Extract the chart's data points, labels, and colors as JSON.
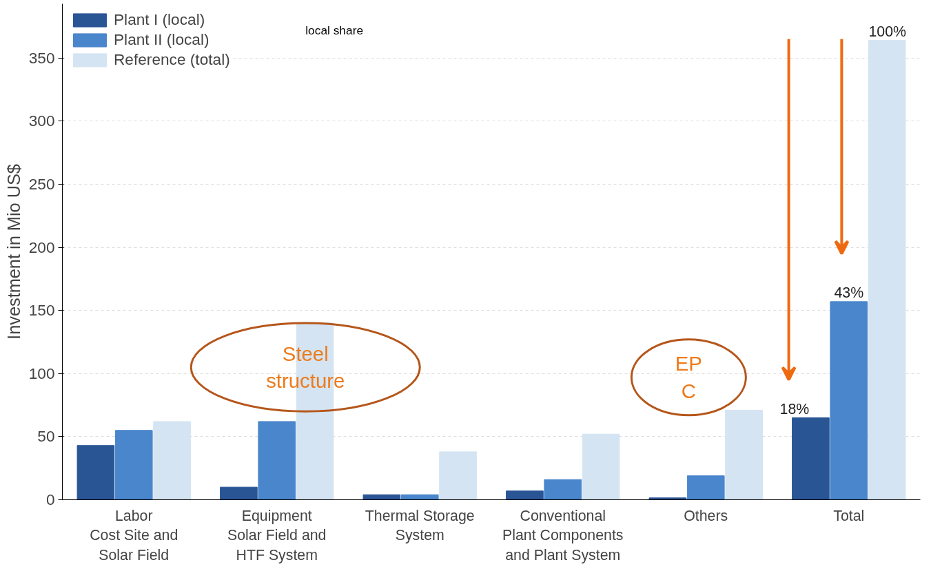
{
  "chart_data": {
    "type": "bar",
    "ylabel": "Investment in Mio US$",
    "categories": [
      "Labor\nCost Site and\nSolar Field",
      "Equipment\nSolar Field and\nHTF System",
      "Thermal Storage\nSystem",
      "Conventional\nPlant Components\nand Plant System",
      "Others",
      "Total"
    ],
    "series": [
      {
        "name": "Plant I (local)",
        "color": "#2a5595",
        "values": [
          43,
          10,
          4,
          7,
          1.5,
          65
        ]
      },
      {
        "name": "Plant II (local)",
        "color": "#4a86cc",
        "values": [
          55,
          62,
          4,
          16,
          19,
          157
        ]
      },
      {
        "name": "Reference (total)",
        "color": "#d4e4f2",
        "values": [
          62,
          140,
          38,
          52,
          71,
          364
        ]
      }
    ],
    "ylim": [
      0,
      393
    ],
    "yticks": [
      0,
      50,
      100,
      150,
      200,
      250,
      300,
      350
    ],
    "grid": "y",
    "legend": "top left",
    "annotations": [
      "local share",
      "18%",
      "43%",
      "100%",
      "Steel\nstructure",
      "EP\nC"
    ]
  }
}
